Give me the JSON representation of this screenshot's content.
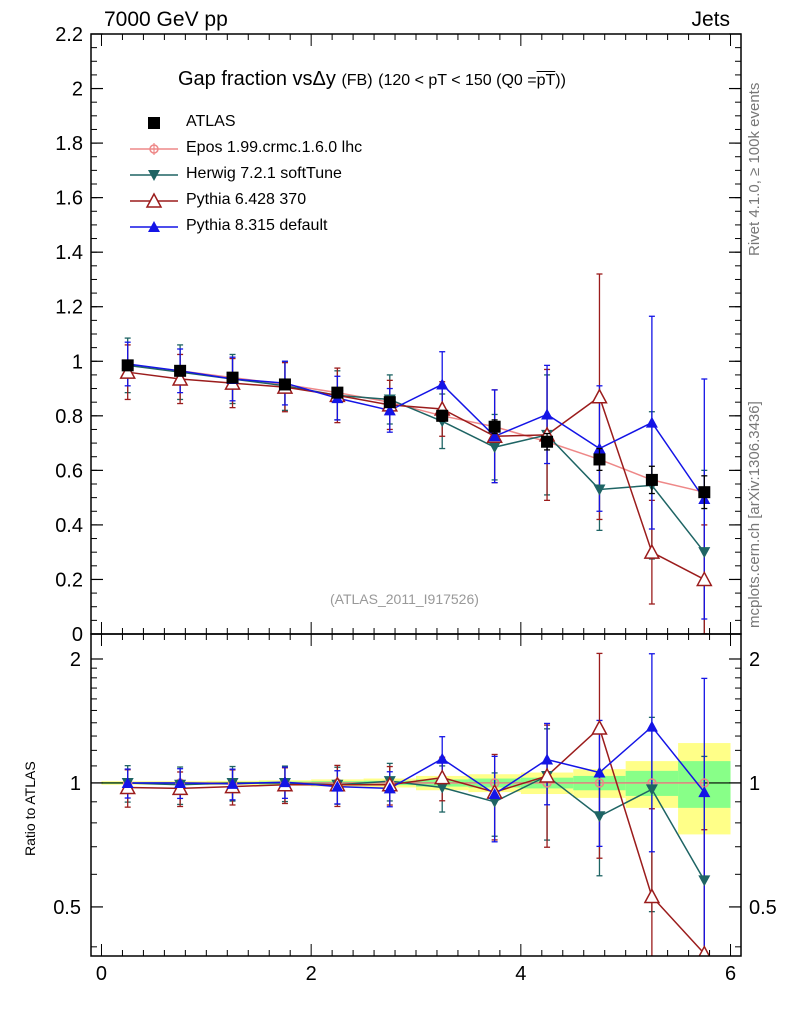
{
  "header": {
    "left": "7000 GeV pp",
    "right": "Jets"
  },
  "side_text": {
    "rivet": "Rivet 4.1.0, ≥ 100k events",
    "mcplots": "mcplots.cern.ch [arXiv:1306.3436]"
  },
  "title": {
    "main": "Gap fraction vsΔy",
    "fb": "(FB)",
    "range_pre": "(120 < pT < 150 (Q0 =",
    "range_ov": "pT",
    "range_post": "))"
  },
  "analysis_id": "(ATLAS_2011_I917526)",
  "ratio_ylabel": "Ratio to ATLAS",
  "colors": {
    "atlas": "#000000",
    "epos": "#ee8888",
    "herwig": "#1e6464",
    "pythia6": "#9b1c1c",
    "pythia8": "#1414e6",
    "band_yellow": "#ffff88",
    "band_green": "#88ff88"
  },
  "chart_data": {
    "type": "scatter",
    "x": [
      0.25,
      0.75,
      1.25,
      1.75,
      2.25,
      2.75,
      3.25,
      3.75,
      4.25,
      4.75,
      5.25,
      5.75
    ],
    "xlim": [
      -0.1,
      6.1
    ],
    "xticks": [
      0,
      2,
      4,
      6
    ],
    "main": {
      "ylim": [
        0,
        2.2
      ],
      "yticks": [
        0,
        0.2,
        0.4,
        0.6,
        0.8,
        1,
        1.2,
        1.4,
        1.6,
        1.8,
        2,
        2.2
      ],
      "ytick_labels": [
        "0",
        "0.2",
        "0.4",
        "0.6",
        "0.8",
        "1",
        "1.2",
        "1.4",
        "1.6",
        "1.8",
        "2",
        "2.2"
      ]
    },
    "ratio": {
      "ylim": [
        0.38,
        2.3
      ],
      "ylog": true,
      "yticks": [
        0.5,
        1,
        2
      ],
      "ytick_labels": [
        "0.5",
        "1",
        "2"
      ],
      "ylabel": "Ratio to ATLAS"
    },
    "series": [
      {
        "name": "ATLAS",
        "key": "atlas",
        "marker": "square",
        "values": [
          0.985,
          0.965,
          0.94,
          0.915,
          0.885,
          0.85,
          0.8,
          0.76,
          0.705,
          0.64,
          0.565,
          0.52
        ],
        "errors": [
          0.01,
          0.01,
          0.01,
          0.01,
          0.015,
          0.015,
          0.02,
          0.025,
          0.03,
          0.04,
          0.05,
          0.06
        ],
        "band_yellow": [
          0.01,
          0.01,
          0.012,
          0.015,
          0.02,
          0.025,
          0.04,
          0.05,
          0.06,
          0.08,
          0.13,
          0.25
        ],
        "band_green": [
          0.005,
          0.005,
          0.006,
          0.008,
          0.01,
          0.012,
          0.02,
          0.025,
          0.03,
          0.04,
          0.07,
          0.13
        ]
      },
      {
        "name": "Epos 1.99.crmc.1.6.0 lhc",
        "key": "epos",
        "marker": "circle-open",
        "values": [
          0.985,
          0.965,
          0.94,
          0.915,
          0.885,
          0.85,
          0.8,
          0.76,
          0.705,
          0.64,
          0.565,
          0.52
        ],
        "errors": [
          0,
          0,
          0,
          0,
          0,
          0,
          0,
          0,
          0,
          0,
          0,
          0
        ],
        "ratio": [
          1,
          1,
          1,
          1,
          1,
          1,
          1,
          1,
          1,
          1,
          1,
          1
        ]
      },
      {
        "name": "Herwig 7.2.1 softTune",
        "key": "herwig",
        "marker": "triangle-down",
        "values": [
          0.985,
          0.96,
          0.935,
          0.91,
          0.875,
          0.86,
          0.78,
          0.685,
          0.73,
          0.53,
          0.545,
          0.3
        ],
        "errors": [
          0.1,
          0.1,
          0.09,
          0.09,
          0.09,
          0.09,
          0.1,
          0.12,
          0.22,
          0.15,
          0.27,
          0.3
        ],
        "ratio": [
          1.0,
          0.99,
          1.0,
          1.0,
          0.99,
          1.01,
          0.975,
          0.9,
          1.04,
          0.83,
          0.965,
          0.58
        ]
      },
      {
        "name": "Pythia 6.428 370",
        "key": "pythia6",
        "marker": "triangle-open",
        "values": [
          0.96,
          0.935,
          0.92,
          0.905,
          0.875,
          0.84,
          0.825,
          0.725,
          0.73,
          0.87,
          0.3,
          0.2
        ],
        "errors": [
          0.1,
          0.09,
          0.09,
          0.09,
          0.1,
          0.09,
          0.1,
          0.17,
          0.24,
          0.45,
          0.19,
          0.2
        ],
        "ratio": [
          0.975,
          0.97,
          0.98,
          0.99,
          0.99,
          0.99,
          1.03,
          0.95,
          1.04,
          1.36,
          0.53,
          0.385
        ]
      },
      {
        "name": "Pythia 8.315 default",
        "key": "pythia8",
        "marker": "triangle-up",
        "values": [
          0.99,
          0.965,
          0.935,
          0.92,
          0.865,
          0.82,
          0.915,
          0.725,
          0.805,
          0.68,
          0.775,
          0.495
        ],
        "errors": [
          0.08,
          0.08,
          0.08,
          0.08,
          0.08,
          0.08,
          0.12,
          0.17,
          0.18,
          0.23,
          0.39,
          0.44
        ],
        "ratio": [
          1.0,
          1.0,
          0.995,
          1.005,
          0.98,
          0.97,
          1.145,
          0.94,
          1.14,
          1.06,
          1.37,
          0.95
        ]
      }
    ],
    "legend": [
      "ATLAS",
      "Epos 1.99.crmc.1.6.0 lhc",
      "Herwig 7.2.1 softTune",
      "Pythia 6.428 370",
      "Pythia 8.315 default"
    ],
    "legend_position": "top-left"
  }
}
